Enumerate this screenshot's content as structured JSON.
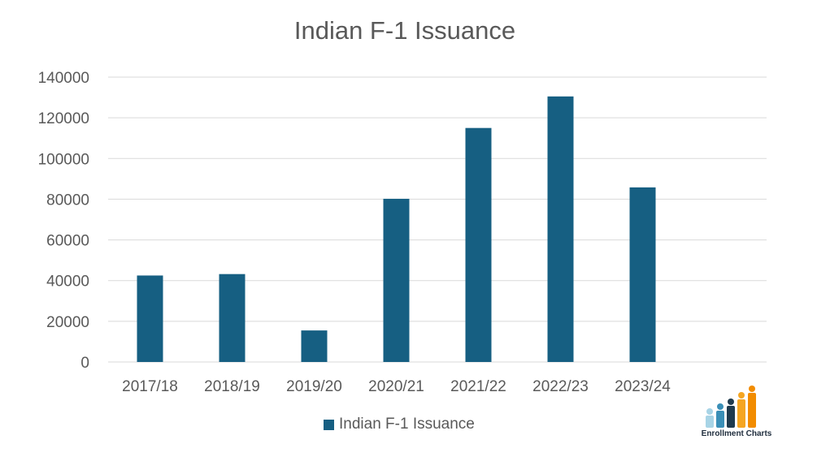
{
  "chart_data": {
    "type": "bar",
    "title": "Indian F-1 Issuance",
    "categories": [
      "2017/18",
      "2018/19",
      "2019/20",
      "2020/21",
      "2021/22",
      "2022/23",
      "2023/24"
    ],
    "series": [
      {
        "name": "Indian F-1 Issuance",
        "values": [
          42500,
          43200,
          15500,
          80200,
          115000,
          130500,
          85800
        ],
        "color": "#165f82"
      }
    ],
    "ylim": [
      0,
      140000
    ],
    "yticks": [
      0,
      20000,
      40000,
      60000,
      80000,
      100000,
      120000,
      140000
    ],
    "xlabel": "",
    "ylabel": "",
    "grid": true,
    "legend_position": "bottom"
  },
  "legend": {
    "label": "Indian F-1 Issuance"
  },
  "logo": {
    "text": "Enrollment Charts",
    "colors": [
      "#a8d4e6",
      "#3a8fb7",
      "#1f3a4d",
      "#f5a623",
      "#f28c00"
    ]
  }
}
